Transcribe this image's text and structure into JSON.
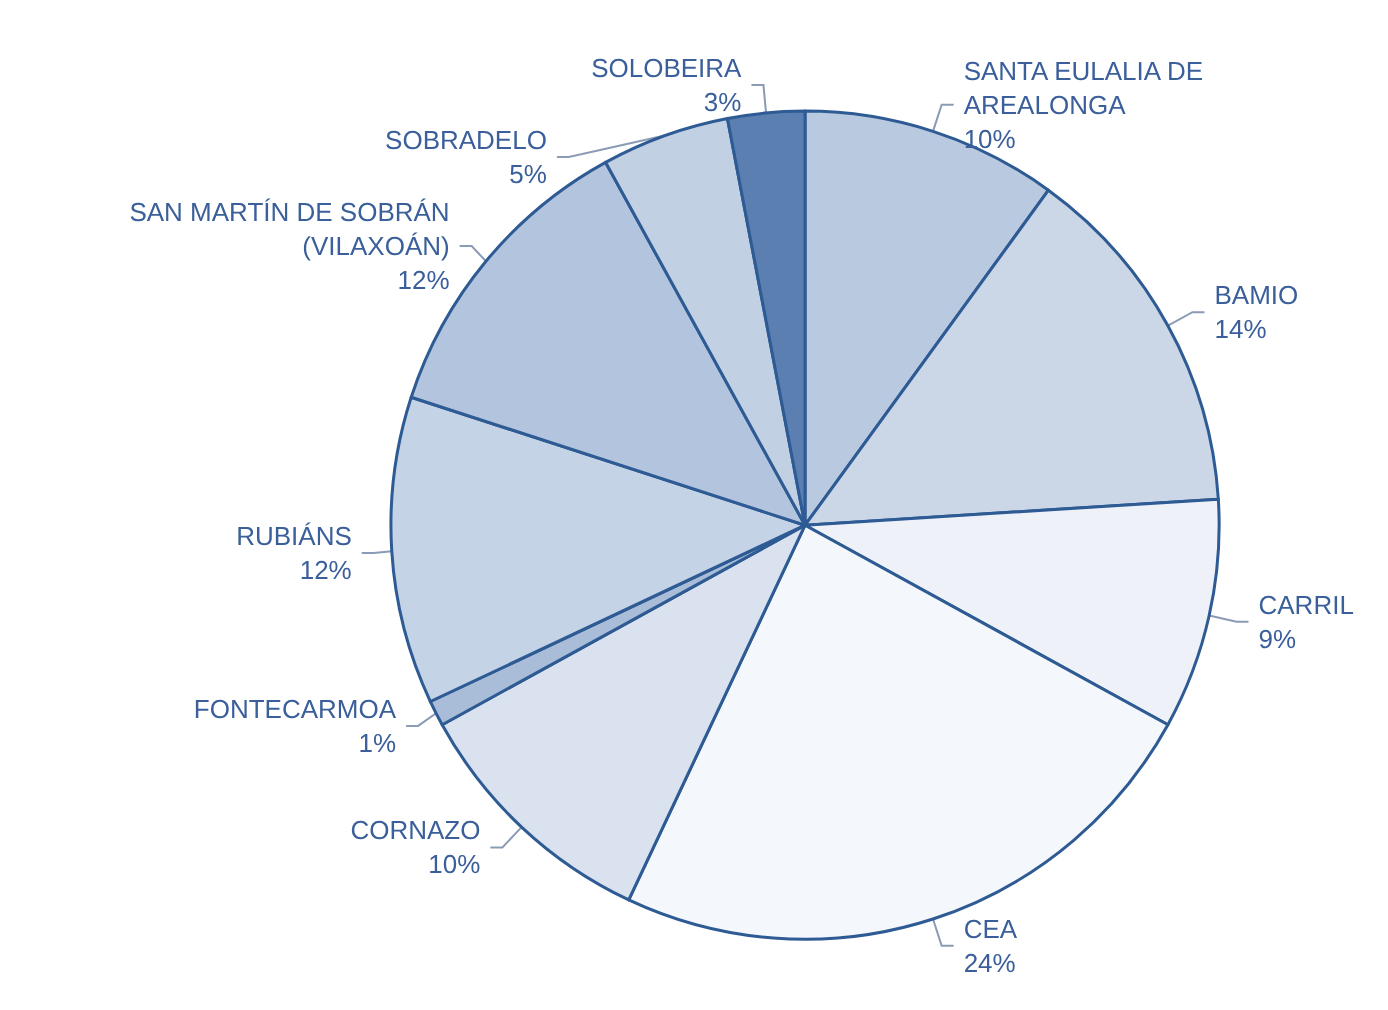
{
  "chart_data": {
    "type": "pie",
    "categories": [
      "SANTA EULALIA DE\nAREALONGA",
      "BAMIO",
      "CARRIL",
      "CEA",
      "CORNAZO",
      "FONTECARMOA",
      "RUBIÁNS",
      "SAN MARTÍN DE SOBRÁN\n(VILAXOÁN)",
      "SOBRADELO",
      "SOLOBEIRA"
    ],
    "values": [
      10,
      14,
      9,
      24,
      10,
      1,
      12,
      12,
      5,
      3
    ],
    "value_labels": [
      "10%",
      "14%",
      "9%",
      "24%",
      "10%",
      "1%",
      "12%",
      "12%",
      "5%",
      "3%"
    ],
    "colors": [
      "#b9c9df",
      "#cbd7e7",
      "#eef2f8",
      "#f4f7fb",
      "#d9e2ee",
      "#a9bdd8",
      "#c5d3e6",
      "#b3c5de",
      "#c2d0e3",
      "#5b7fb0"
    ],
    "legend": false
  }
}
